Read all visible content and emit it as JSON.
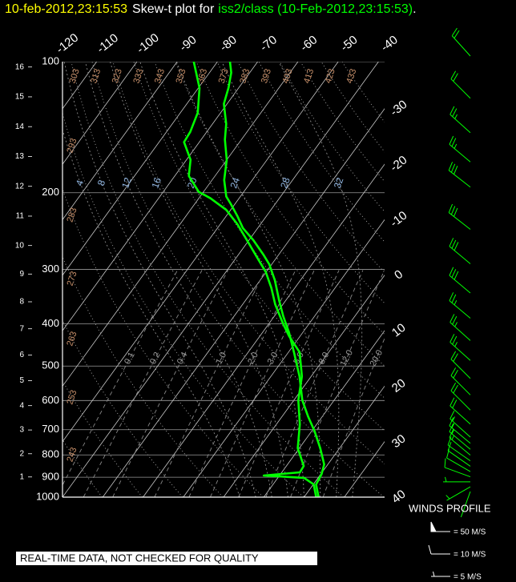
{
  "chart_data": {
    "type": "skew-t",
    "title_date": "10-feb-2012,23:15:53",
    "title_text": "Skew-t plot for",
    "title_source": "iss2/class (10-Feb-2012,23:15:53)",
    "title_end": ".",
    "notice": "REAL-TIME DATA, NOT CHECKED FOR QUALITY",
    "y_scale": "log",
    "ylim": [
      1000,
      100
    ],
    "yticks": [
      100,
      200,
      300,
      400,
      500,
      600,
      700,
      800,
      900,
      1000
    ],
    "xlim": [
      -40,
      40
    ],
    "xticks": [
      -120,
      -110,
      -100,
      -90,
      -80,
      -70,
      -60,
      -50,
      -40,
      -30,
      -20,
      -10,
      0,
      10,
      20,
      30,
      40
    ],
    "height_ticks": [
      1,
      2,
      3,
      4,
      5,
      6,
      7,
      8,
      9,
      10,
      11,
      12,
      13,
      14,
      15,
      16
    ],
    "theta_lines": [
      243,
      253,
      263,
      273,
      283,
      293,
      303,
      313,
      323,
      333,
      343,
      353,
      363,
      373,
      383,
      393,
      403,
      413,
      423,
      433
    ],
    "mixing_ratios": [
      0.1,
      0.2,
      0.4,
      {
        "value": 1,
        "label": "1.0"
      },
      {
        "value": 2,
        "label": "2.0"
      },
      {
        "value": 3,
        "label": "3.0"
      },
      {
        "value": 5,
        "label": "5.0"
      },
      {
        "value": 8,
        "label": "8.0"
      },
      {
        "value": 12,
        "label": "12.0"
      },
      {
        "value": 20,
        "label": "20.0"
      }
    ],
    "moist_adiabats": [
      4,
      8,
      12,
      16,
      20,
      24,
      28,
      32
    ],
    "temperature": {
      "color": "#00ff00",
      "pressure": [
        1000,
        935,
        885,
        841,
        772,
        704,
        652,
        599,
        528,
        465,
        418,
        384,
        353,
        318,
        292,
        277,
        257,
        241,
        226,
        212,
        204,
        187,
        168,
        151,
        139,
        125,
        115,
        106,
        100
      ],
      "values": [
        23.6,
        20.7,
        20.2,
        19.1,
        15.2,
        10.6,
        6.4,
        2.1,
        -2.9,
        -8.6,
        -13.5,
        -17.8,
        -21.7,
        -26.3,
        -30.6,
        -33.9,
        -38.9,
        -43.7,
        -47.3,
        -51.1,
        -53.5,
        -57.0,
        -60.0,
        -64.1,
        -66.6,
        -70.8,
        -72.5,
        -74.6,
        -76.9
      ]
    },
    "dewpoint": {
      "color": "#00ff00",
      "pressure": [
        1000,
        935,
        903,
        892,
        877,
        848,
        772,
        680,
        599,
        528,
        465,
        427,
        401,
        361,
        331,
        304,
        286,
        257,
        236,
        219,
        206,
        199,
        183,
        168,
        153,
        145,
        131,
        115,
        100
      ],
      "values": [
        23.0,
        20.1,
        16.5,
        6.1,
        14.5,
        14.3,
        9.6,
        5.8,
        1.1,
        -2.3,
        -7.2,
        -12.7,
        -16.3,
        -21.9,
        -25.8,
        -30.1,
        -33.9,
        -40.5,
        -45.8,
        -51.1,
        -57.1,
        -61.2,
        -66.5,
        -69.0,
        -73.8,
        -74.1,
        -75.7,
        -79.7,
        -85.9
      ]
    },
    "winds": {
      "title": "WINDS PROFILE",
      "color": "#00ff00",
      "pressure": [
        1000,
        975,
        950,
        925,
        900,
        875,
        850,
        825,
        800,
        775,
        750,
        700,
        650,
        600,
        550,
        500,
        450,
        400,
        350,
        300,
        250,
        200,
        175,
        150,
        125,
        100
      ],
      "speed": [
        4,
        6,
        8,
        10,
        12,
        12,
        14,
        15,
        16,
        17,
        18,
        20,
        22,
        23,
        24,
        25,
        27,
        29,
        30,
        32,
        33,
        30,
        28,
        26,
        24,
        22
      ],
      "direction": [
        200,
        240,
        270,
        290,
        300,
        305,
        305,
        310,
        310,
        310,
        312,
        312,
        315,
        315,
        315,
        312,
        312,
        310,
        310,
        310,
        308,
        308,
        310,
        312,
        315,
        318
      ],
      "legend": [
        {
          "speed": 50,
          "label": "= 50 M/S"
        },
        {
          "speed": 10,
          "label": "= 10 M/S"
        },
        {
          "speed": 5,
          "label": "= 5 M/S"
        }
      ]
    }
  }
}
